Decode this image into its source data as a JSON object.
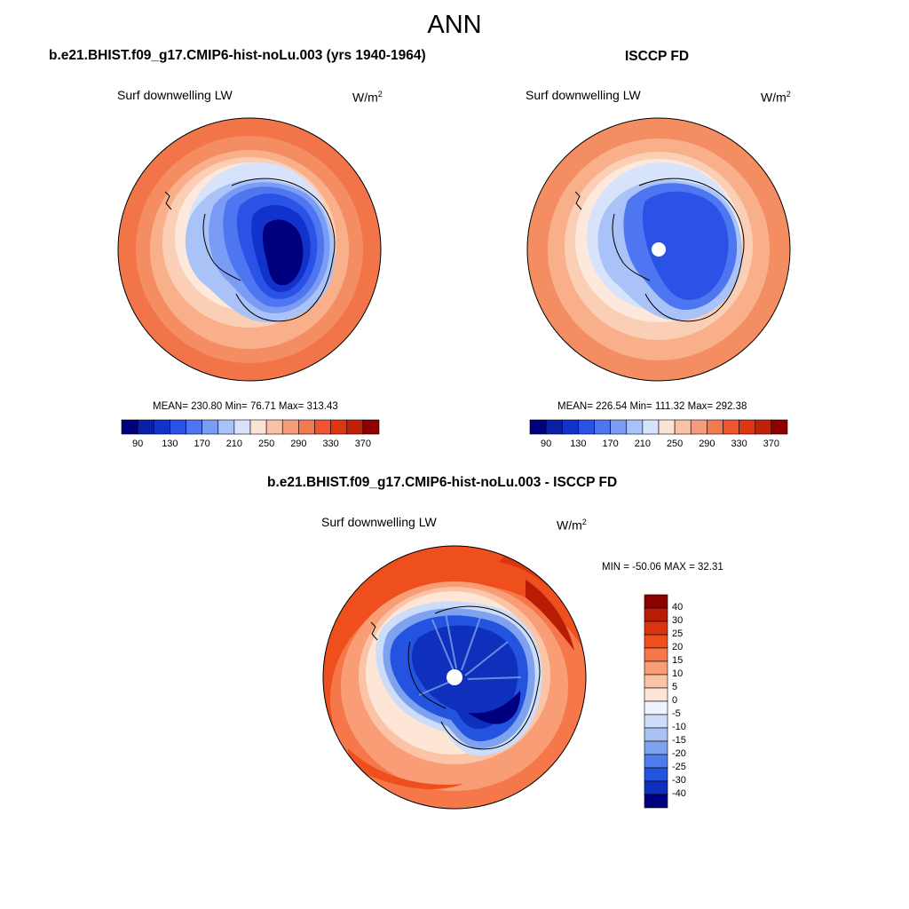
{
  "title": "ANN",
  "panels": [
    {
      "id": "model",
      "title": "b.e21.BHIST.f09_g17.CMIP6-hist-noLu.003 (yrs 1940-1964)",
      "variable": "Surf downwelling LW",
      "units_base": "W/m",
      "units_exp": "2",
      "stats_text": "MEAN= 230.80  Min=  76.71  Max= 313.43",
      "colorbar_labels": [
        "90",
        "130",
        "170",
        "210",
        "250",
        "290",
        "330",
        "370"
      ]
    },
    {
      "id": "obs",
      "title": "ISCCP FD",
      "variable": "Surf downwelling LW",
      "units_base": "W/m",
      "units_exp": "2",
      "stats_text": "MEAN= 226.54  Min= 111.32  Max= 292.38",
      "colorbar_labels": [
        "90",
        "130",
        "170",
        "210",
        "250",
        "290",
        "330",
        "370"
      ]
    },
    {
      "id": "diff",
      "title": "b.e21.BHIST.f09_g17.CMIP6-hist-noLu.003 - ISCCP FD",
      "variable": "Surf downwelling LW",
      "units_base": "W/m",
      "units_exp": "2",
      "stats_text": "MIN = -50.06 MAX =  32.31",
      "colorbar_labels": [
        "40",
        "30",
        "25",
        "20",
        "15",
        "10",
        "5",
        "0",
        "-5",
        "-10",
        "-15",
        "-20",
        "-25",
        "-30",
        "-40"
      ]
    }
  ],
  "colors": {
    "abs_scale": [
      "#00007f",
      "#0a1fa6",
      "#1133cc",
      "#2a52e6",
      "#4d76f0",
      "#7a9cf5",
      "#a9c2f7",
      "#d6e3fa",
      "#fbe3d6",
      "#f9c2a6",
      "#f59c7a",
      "#f27a52",
      "#ee5530",
      "#e03512",
      "#bf2208",
      "#8c0000"
    ],
    "diff_scale": [
      "#8c0000",
      "#b81c05",
      "#d93610",
      "#ef4f1d",
      "#f5774a",
      "#f89d76",
      "#fbc4a6",
      "#fde6d6",
      "#eef3fd",
      "#cddcf8",
      "#a9c2f3",
      "#7ea2ee",
      "#4f7cea",
      "#2353df",
      "#0f30bd",
      "#00007f"
    ]
  }
}
